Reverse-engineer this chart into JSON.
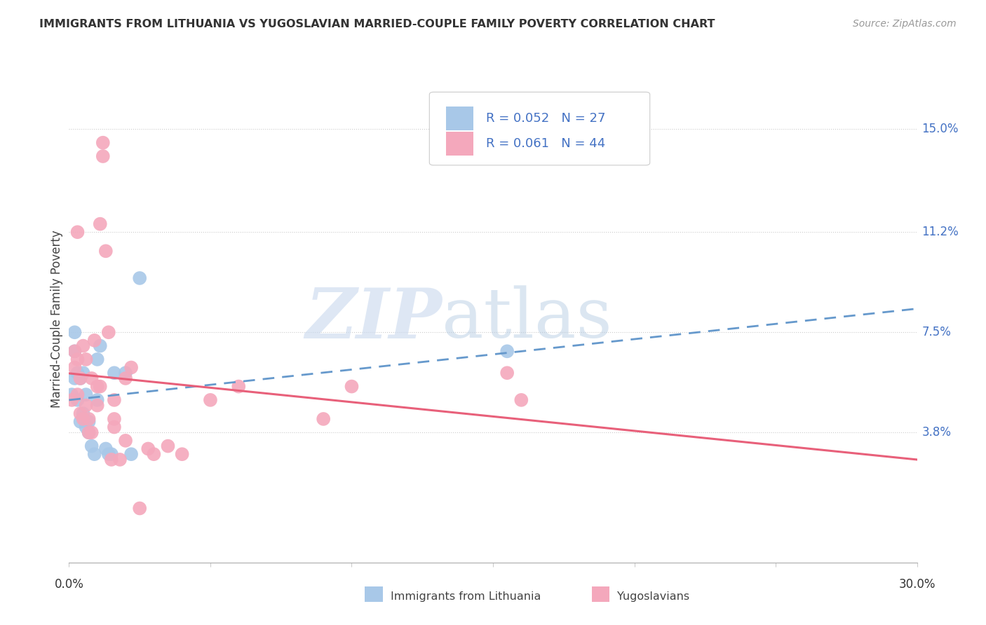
{
  "title": "IMMIGRANTS FROM LITHUANIA VS YUGOSLAVIAN MARRIED-COUPLE FAMILY POVERTY CORRELATION CHART",
  "source": "Source: ZipAtlas.com",
  "ylabel": "Married-Couple Family Poverty",
  "ytick_labels": [
    "15.0%",
    "11.2%",
    "7.5%",
    "3.8%"
  ],
  "ytick_values": [
    0.15,
    0.112,
    0.075,
    0.038
  ],
  "xmin": 0.0,
  "xmax": 0.3,
  "ymin": -0.01,
  "ymax": 0.17,
  "legend1_label": "Immigrants from Lithuania",
  "legend2_label": "Yugoslavians",
  "R1": "0.052",
  "N1": "27",
  "R2": "0.061",
  "N2": "44",
  "blue_color": "#a8c8e8",
  "pink_color": "#f4a8bc",
  "blue_line_color": "#6699cc",
  "pink_line_color": "#e8607a",
  "blue_points_x": [
    0.001,
    0.002,
    0.002,
    0.003,
    0.003,
    0.004,
    0.004,
    0.005,
    0.005,
    0.006,
    0.006,
    0.007,
    0.007,
    0.008,
    0.009,
    0.01,
    0.01,
    0.011,
    0.013,
    0.014,
    0.015,
    0.016,
    0.02,
    0.022,
    0.025,
    0.155,
    0.002
  ],
  "blue_points_y": [
    0.052,
    0.058,
    0.068,
    0.05,
    0.06,
    0.042,
    0.058,
    0.045,
    0.06,
    0.04,
    0.052,
    0.038,
    0.042,
    0.033,
    0.03,
    0.05,
    0.065,
    0.07,
    0.032,
    0.03,
    0.03,
    0.06,
    0.06,
    0.03,
    0.095,
    0.068,
    0.075
  ],
  "pink_points_x": [
    0.001,
    0.002,
    0.002,
    0.003,
    0.003,
    0.004,
    0.004,
    0.005,
    0.005,
    0.006,
    0.006,
    0.007,
    0.007,
    0.008,
    0.008,
    0.009,
    0.01,
    0.01,
    0.011,
    0.011,
    0.012,
    0.012,
    0.013,
    0.014,
    0.015,
    0.016,
    0.016,
    0.016,
    0.018,
    0.02,
    0.02,
    0.022,
    0.025,
    0.028,
    0.03,
    0.035,
    0.04,
    0.05,
    0.06,
    0.09,
    0.1,
    0.155,
    0.16,
    0.003
  ],
  "pink_points_y": [
    0.05,
    0.062,
    0.068,
    0.052,
    0.065,
    0.045,
    0.058,
    0.043,
    0.07,
    0.048,
    0.065,
    0.038,
    0.043,
    0.038,
    0.058,
    0.072,
    0.048,
    0.055,
    0.055,
    0.115,
    0.14,
    0.145,
    0.105,
    0.075,
    0.028,
    0.043,
    0.04,
    0.05,
    0.028,
    0.058,
    0.035,
    0.062,
    0.01,
    0.032,
    0.03,
    0.033,
    0.03,
    0.05,
    0.055,
    0.043,
    0.055,
    0.06,
    0.05,
    0.112
  ]
}
